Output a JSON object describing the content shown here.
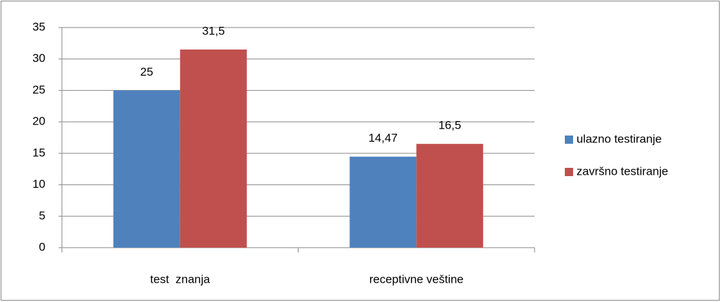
{
  "chart_data": {
    "type": "bar",
    "categories": [
      "test  znanja",
      "receptivne veštine"
    ],
    "series": [
      {
        "name": "ulazno testiranje",
        "color": "#4f81bd",
        "values": [
          25,
          14.47
        ],
        "value_labels": [
          "25",
          "14,47"
        ]
      },
      {
        "name": "završno testiranje",
        "color": "#c0504d",
        "values": [
          31.5,
          16.5
        ],
        "value_labels": [
          "31,5",
          "16,5"
        ]
      }
    ],
    "ylim": [
      0,
      35
    ],
    "yticks": [
      0,
      5,
      10,
      15,
      20,
      25,
      30,
      35
    ],
    "grid": true,
    "legend": "right"
  }
}
